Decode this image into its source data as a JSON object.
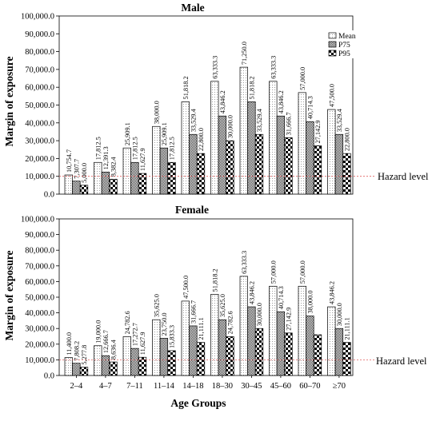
{
  "xlabel": "Age Groups",
  "hazard_label": "Hazard level",
  "chart_data": [
    {
      "type": "bar",
      "title": "Male",
      "ylabel": "Margin of exposure",
      "ylim": [
        0,
        100000
      ],
      "yticks": [
        "0.0",
        "10,000.0",
        "20,000.0",
        "30,000.0",
        "40,000.0",
        "50,000.0",
        "60,000.0",
        "70,000.0",
        "80,000.0",
        "90,000.0",
        "100,000.0"
      ],
      "categories": [
        "2–4",
        "4–7",
        "7–11",
        "11–14",
        "14–18",
        "18–30",
        "30–45",
        "45–60",
        "60–70",
        "≥70"
      ],
      "hazard_level": 10000,
      "legend": "top-right",
      "series": [
        {
          "name": "Mean",
          "values": [
            10754.7,
            17812.5,
            25909.1,
            38000.0,
            51818.2,
            63333.3,
            71250.0,
            63333.3,
            57000.0,
            47500.0
          ],
          "labels": [
            "10,754.7",
            "17,812.5",
            "25,909.1",
            "38,000.0",
            "51,818.2",
            "63,333.3",
            "71,250.0",
            "63,333.3",
            "57,000.0",
            "47,500.0"
          ]
        },
        {
          "name": "P75",
          "values": [
            7307.7,
            12391.3,
            17812.5,
            25909.1,
            33529.4,
            43846.2,
            51818.2,
            43846.2,
            40714.3,
            33529.4
          ],
          "labels": [
            "7,307.7",
            "12,391.3",
            "17,812.5",
            "25,909.1",
            "33,529.4",
            "43,846.2",
            "51,818.2",
            "43,846.2",
            "40,714.3",
            "33,529.4"
          ]
        },
        {
          "name": "P95",
          "values": [
            5000.0,
            8382.4,
            11627.9,
            17812.5,
            22800.0,
            30000.0,
            33529.4,
            31666.7,
            27142.9,
            22800.0
          ],
          "labels": [
            "5,000.0",
            "8,382.4",
            "11,627.9",
            "17,812.5",
            "22,800.0",
            "30,000.0",
            "33,529.4",
            "31,666.7",
            "27,142.9",
            "22,800.0"
          ]
        }
      ]
    },
    {
      "type": "bar",
      "title": "Female",
      "ylabel": "Margin of exposure",
      "ylim": [
        0,
        100000
      ],
      "yticks": [
        "0.0",
        "10,000.0",
        "20,000.0",
        "30,000.0",
        "40,000.0",
        "50,000.0",
        "60,000.0",
        "70,000.0",
        "80,000.0",
        "90,000.0",
        "100,000.0"
      ],
      "categories": [
        "2–4",
        "4–7",
        "7–11",
        "11–14",
        "14–18",
        "18–30",
        "30–45",
        "45–60",
        "60–70",
        "≥70"
      ],
      "hazard_level": 10000,
      "series": [
        {
          "name": "Mean",
          "values": [
            11400.0,
            19000.0,
            24782.6,
            35625.0,
            47500.0,
            51818.2,
            63333.3,
            57000.0,
            57000.0,
            43846.2
          ],
          "labels": [
            "11,400.0",
            "19,000.0",
            "24,782.6",
            "35,625.0",
            "47,500.0",
            "51,818.2",
            "63,333.3",
            "57,000.0",
            "57,000.0",
            "43,846.2"
          ]
        },
        {
          "name": "P75",
          "values": [
            7808.2,
            12666.7,
            17272.7,
            23750.0,
            31666.7,
            35625.0,
            43846.2,
            40714.3,
            38000.0,
            30000.0
          ],
          "labels": [
            "7,808.2",
            "12,666.7",
            "17,272.7",
            "23,750.0",
            "31,666.7",
            "35,625.0",
            "43,846.2",
            "40,714.3",
            "38,000.0",
            "30,000.0"
          ]
        },
        {
          "name": "P95",
          "values": [
            5277.8,
            8636.4,
            11627.9,
            15833.3,
            21111.1,
            24782.6,
            30000.0,
            27142.9,
            26000.0,
            21111.1
          ],
          "labels": [
            "5,277.8",
            "8,636.4",
            "11,627.9",
            "15,833.3",
            "21,111.1",
            "24,782.6",
            "30,000.0",
            "27,142.9",
            "",
            "21,111.1"
          ]
        }
      ]
    }
  ]
}
